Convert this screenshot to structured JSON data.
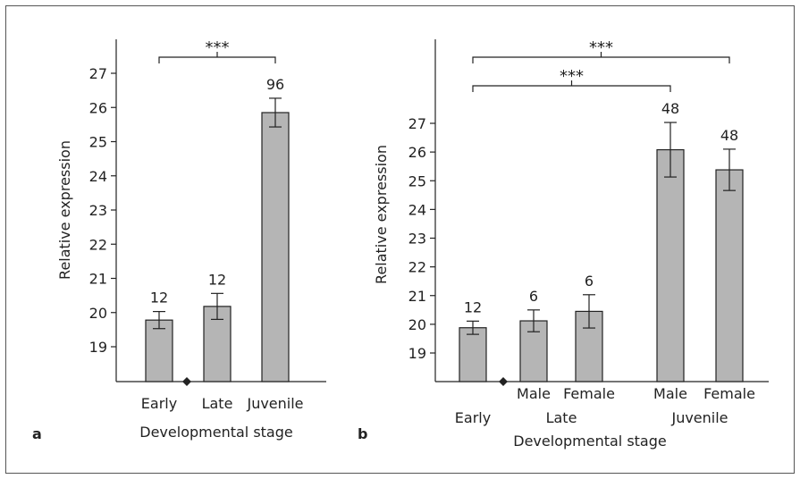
{
  "colors": {
    "bar": "#b5b5b5",
    "stroke": "#222222",
    "frame": "#555555"
  },
  "chart_data": [
    {
      "type": "bar",
      "panel_label": "a",
      "ylabel": "Relative expression",
      "xlabel": "Developmental stage",
      "ylim": [
        18,
        27.5
      ],
      "yticks": [
        19,
        20,
        21,
        22,
        23,
        24,
        25,
        26,
        27
      ],
      "categories": [
        "Early",
        "Late",
        "Juvenile"
      ],
      "values": [
        19.78,
        20.18,
        25.85
      ],
      "errors": [
        0.25,
        0.38,
        0.42
      ],
      "data_labels": [
        "12",
        "12",
        "96"
      ],
      "significance": [
        {
          "label": "***",
          "from": 0,
          "to": 2
        }
      ]
    },
    {
      "type": "bar",
      "panel_label": "b",
      "ylabel": "Relative expression",
      "xlabel": "Developmental stage",
      "ylim": [
        18,
        29
      ],
      "yticks": [
        19,
        20,
        21,
        22,
        23,
        24,
        25,
        26,
        27
      ],
      "categories": [
        "Early",
        "Male",
        "Female",
        "Male",
        "Female"
      ],
      "groups": [
        {
          "label": "Early",
          "members": [
            0
          ]
        },
        {
          "label": "Late",
          "members": [
            1,
            2
          ]
        },
        {
          "label": "Juvenile",
          "members": [
            3,
            4
          ]
        }
      ],
      "values": [
        19.88,
        20.12,
        20.45,
        26.08,
        25.38
      ],
      "errors": [
        0.23,
        0.38,
        0.58,
        0.95,
        0.72
      ],
      "data_labels": [
        "12",
        "6",
        "6",
        "48",
        "48"
      ],
      "significance": [
        {
          "label": "***",
          "from": 0,
          "to": 4
        },
        {
          "label": "***",
          "from": 0,
          "to": 3
        }
      ]
    }
  ]
}
